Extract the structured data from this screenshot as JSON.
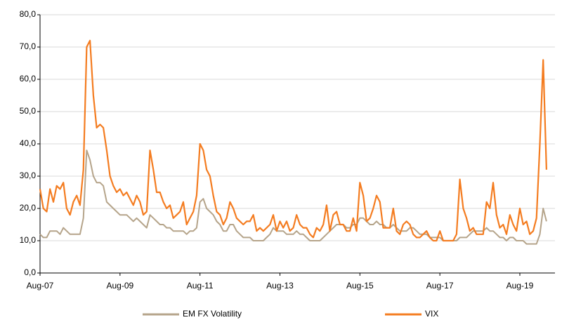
{
  "chart_data": {
    "type": "line",
    "categories": [
      "Aug-07",
      null,
      null,
      null,
      null,
      null,
      null,
      null,
      null,
      null,
      null,
      null,
      null,
      null,
      null,
      null,
      null,
      null,
      null,
      null,
      null,
      null,
      null,
      null,
      "Aug-09",
      null,
      null,
      null,
      null,
      null,
      null,
      null,
      null,
      null,
      null,
      null,
      null,
      null,
      null,
      null,
      null,
      null,
      null,
      null,
      null,
      null,
      null,
      null,
      "Aug-11",
      null,
      null,
      null,
      null,
      null,
      null,
      null,
      null,
      null,
      null,
      null,
      null,
      null,
      null,
      null,
      null,
      null,
      null,
      null,
      null,
      null,
      null,
      null,
      "Aug-13",
      null,
      null,
      null,
      null,
      null,
      null,
      null,
      null,
      null,
      null,
      null,
      null,
      null,
      null,
      null,
      null,
      null,
      null,
      null,
      null,
      null,
      null,
      null,
      "Aug-15",
      null,
      null,
      null,
      null,
      null,
      null,
      null,
      null,
      null,
      null,
      null,
      null,
      null,
      null,
      null,
      null,
      null,
      null,
      null,
      null,
      null,
      null,
      null,
      "Aug-17",
      null,
      null,
      null,
      null,
      null,
      null,
      null,
      null,
      null,
      null,
      null,
      null,
      null,
      null,
      null,
      null,
      null,
      null,
      null,
      null,
      null,
      null,
      null,
      "Aug-19",
      null,
      null,
      null,
      null,
      null,
      null,
      null,
      null
    ],
    "series": [
      {
        "name": "EM FX Volatility",
        "color": "#b5a48a",
        "values": [
          12,
          11,
          11,
          13,
          13,
          13,
          12,
          14,
          13,
          12,
          12,
          12,
          12,
          17,
          38,
          35,
          30,
          28,
          28,
          27,
          22,
          21,
          20,
          19,
          18,
          18,
          18,
          17,
          16,
          17,
          16,
          15,
          14,
          18,
          17,
          16,
          15,
          15,
          14,
          14,
          13,
          13,
          13,
          13,
          12,
          13,
          13,
          14,
          22,
          23,
          20,
          19,
          18,
          16,
          15,
          13,
          13,
          15,
          15,
          13,
          12,
          11,
          11,
          11,
          10,
          10,
          10,
          10,
          11,
          12,
          14,
          13,
          13,
          13,
          12,
          12,
          12,
          13,
          12,
          12,
          11,
          10,
          10,
          10,
          10,
          11,
          12,
          13,
          14,
          15,
          15,
          15,
          14,
          14,
          15,
          15,
          17,
          17,
          16,
          15,
          15,
          16,
          15,
          15,
          14,
          14,
          15,
          14,
          13,
          13,
          13,
          14,
          14,
          13,
          12,
          12,
          12,
          11,
          11,
          11,
          11,
          10,
          10,
          10,
          10,
          10,
          11,
          11,
          11,
          12,
          13,
          13,
          13,
          13,
          14,
          13,
          13,
          12,
          11,
          11,
          10,
          11,
          11,
          10,
          10,
          10,
          9,
          9,
          9,
          9,
          12,
          20,
          16
        ]
      },
      {
        "name": "VIX",
        "color": "#f47c20",
        "values": [
          26,
          20,
          19,
          26,
          22,
          27,
          26,
          28,
          20,
          18,
          22,
          24,
          21,
          32,
          70,
          72,
          55,
          45,
          46,
          45,
          38,
          30,
          27,
          25,
          26,
          24,
          25,
          23,
          21,
          24,
          22,
          18,
          19,
          38,
          32,
          25,
          25,
          22,
          20,
          21,
          17,
          18,
          19,
          22,
          15,
          17,
          19,
          24,
          40,
          38,
          32,
          30,
          24,
          19,
          18,
          15,
          17,
          22,
          20,
          17,
          16,
          15,
          16,
          16,
          18,
          13,
          14,
          13,
          14,
          15,
          18,
          13,
          16,
          14,
          16,
          13,
          14,
          18,
          15,
          14,
          14,
          12,
          11,
          14,
          13,
          15,
          21,
          13,
          18,
          19,
          15,
          15,
          13,
          13,
          17,
          13,
          28,
          24,
          16,
          17,
          20,
          24,
          22,
          14,
          14,
          14,
          20,
          13,
          12,
          15,
          16,
          15,
          12,
          11,
          11,
          12,
          13,
          11,
          10,
          10,
          13,
          10,
          10,
          10,
          10,
          12,
          29,
          20,
          17,
          13,
          14,
          12,
          12,
          12,
          22,
          20,
          28,
          18,
          14,
          15,
          12,
          18,
          15,
          13,
          20,
          15,
          16,
          12,
          13,
          17,
          40,
          66,
          32
        ]
      }
    ],
    "ylim": [
      0,
      80
    ],
    "yticks": [
      {
        "value": 0,
        "label": "0,0"
      },
      {
        "value": 10,
        "label": "10,0"
      },
      {
        "value": 20,
        "label": "20,0"
      },
      {
        "value": 30,
        "label": "30,0"
      },
      {
        "value": 40,
        "label": "40,0"
      },
      {
        "value": 50,
        "label": "50,0"
      },
      {
        "value": 60,
        "label": "60,0"
      },
      {
        "value": 70,
        "label": "70,0"
      },
      {
        "value": 80,
        "label": "80,0"
      }
    ],
    "grid": true
  }
}
